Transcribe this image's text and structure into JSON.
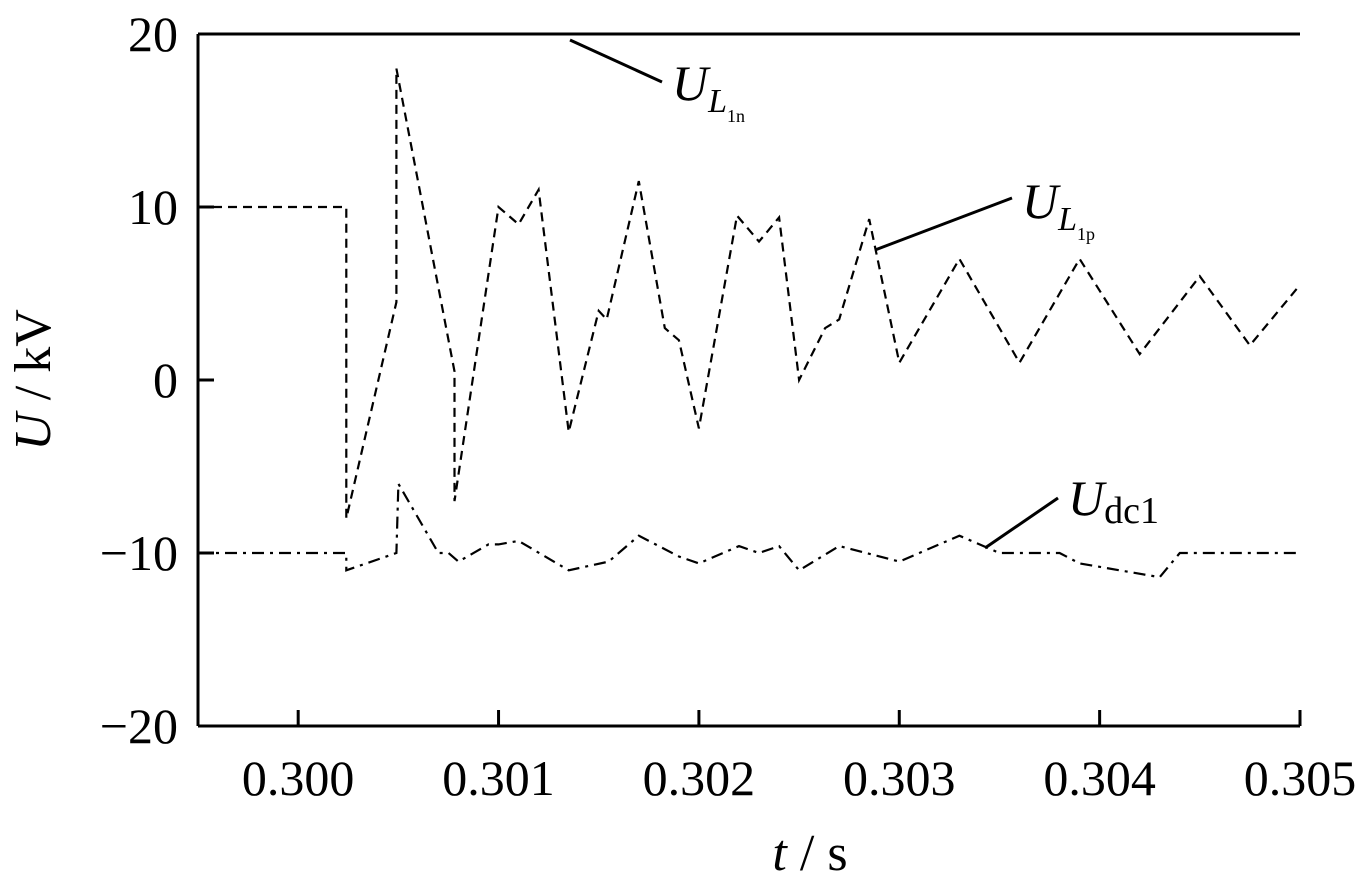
{
  "chart_data": {
    "type": "line",
    "xlabel": {
      "var": "t",
      "unit": " / s"
    },
    "ylabel": {
      "var": "U",
      "unit": " / kV"
    },
    "xlim": [
      0.2995,
      0.305
    ],
    "ylim": [
      -20,
      20
    ],
    "xticks": [
      0.3,
      0.301,
      0.302,
      0.303,
      0.304,
      0.305
    ],
    "xtick_labels": [
      "0.300",
      "0.301",
      "0.302",
      "0.303",
      "0.304",
      "0.305"
    ],
    "yticks": [
      20,
      10,
      0,
      -10,
      -20
    ],
    "ytick_labels": [
      "20",
      "10",
      "0",
      "−10",
      "−20"
    ],
    "grid": false,
    "series": [
      {
        "label": {
          "main": "U",
          "sub": "L",
          "subsub": "1n"
        },
        "line_style": "solid",
        "color": "#000000",
        "x": [
          0.2995,
          0.305
        ],
        "y": [
          20,
          20
        ]
      },
      {
        "label": {
          "main": "U",
          "sub": "L",
          "subsub": "1p"
        },
        "line_style": "dashed",
        "color": "#000000",
        "x": [
          0.2995,
          0.30024,
          0.30024,
          0.30049,
          0.30049,
          0.30078,
          0.30078,
          0.301,
          0.3011,
          0.3012,
          0.30135,
          0.3015,
          0.30154,
          0.3017,
          0.30183,
          0.3019,
          0.302,
          0.30219,
          0.3023,
          0.3024,
          0.3025,
          0.30263,
          0.3027,
          0.30285,
          0.303,
          0.3033,
          0.3036,
          0.3039,
          0.3042,
          0.3045,
          0.30475,
          0.305
        ],
        "y": [
          10,
          10,
          -8,
          4.5,
          18,
          0.5,
          -7,
          10,
          9,
          11,
          -3,
          4,
          3.5,
          11.5,
          3,
          2.3,
          -2.8,
          9.5,
          8,
          9.4,
          0,
          3,
          3.5,
          9.3,
          1,
          7,
          1,
          7,
          1.5,
          6,
          2,
          5.5
        ]
      },
      {
        "label": {
          "main": "U",
          "sub": "dc1"
        },
        "line_style": "dash-dot",
        "color": "#000000",
        "x": [
          0.2995,
          0.30024,
          0.30024,
          0.30049,
          0.3005,
          0.3007,
          0.30075,
          0.3008,
          0.30095,
          0.301,
          0.3011,
          0.30135,
          0.30155,
          0.3017,
          0.3019,
          0.302,
          0.3022,
          0.3023,
          0.3024,
          0.3025,
          0.3027,
          0.303,
          0.3033,
          0.3035,
          0.3038,
          0.3039,
          0.3043,
          0.3044,
          0.305
        ],
        "y": [
          -10,
          -10,
          -11,
          -10,
          -6,
          -10,
          -10,
          -10.5,
          -9.5,
          -9.5,
          -9.3,
          -11,
          -10.5,
          -9,
          -10.2,
          -10.6,
          -9.6,
          -10,
          -9.6,
          -11,
          -9.6,
          -10.5,
          -9,
          -10,
          -10,
          -10.6,
          -11.4,
          -10,
          -10
        ]
      }
    ]
  }
}
